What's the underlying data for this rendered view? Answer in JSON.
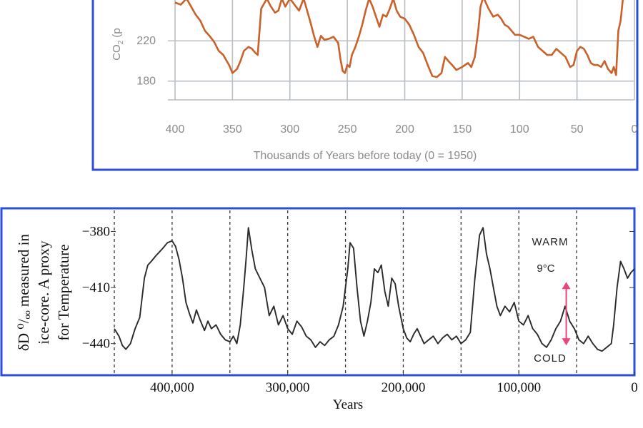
{
  "chart_data": [
    {
      "type": "line",
      "xlabel": "Thousands of Years before today (0 = 1950)",
      "ylabel_visible": "CO₂ (p",
      "ylabel_prefix": "CO",
      "ylabel_sub": "2",
      "ylabel_suffix": " (p",
      "x_ticks": [
        "400",
        "350",
        "300",
        "250",
        "200",
        "150",
        "100",
        "50",
        "0"
      ],
      "y_ticks": [
        "180",
        "220"
      ],
      "xlim": [
        400,
        0
      ],
      "ylim_visible": [
        167,
        262
      ],
      "line_color": "#c8612a",
      "frame_color": "#2c4fd6",
      "grid": true,
      "series": [
        {
          "x": [
            400,
            395,
            390,
            386,
            382,
            378,
            374,
            370,
            366,
            362,
            358,
            355,
            353,
            350,
            346,
            343,
            340,
            336,
            333,
            330,
            328,
            325,
            320,
            317,
            313,
            310,
            307,
            304,
            300,
            296,
            292,
            288,
            285,
            282,
            279,
            276,
            273,
            270,
            266,
            262,
            258,
            256,
            254,
            252,
            250,
            248,
            246,
            243,
            240,
            237,
            234,
            231,
            228,
            225,
            222,
            219,
            216,
            213,
            210,
            207,
            204,
            200,
            196,
            192,
            188,
            184,
            180,
            176,
            172,
            168,
            165,
            162,
            158,
            155,
            150,
            145,
            142,
            139,
            136,
            134,
            132,
            131,
            127,
            123,
            119,
            116,
            113,
            110,
            107,
            104,
            100,
            96,
            92,
            88,
            84,
            80,
            76,
            72,
            68,
            64,
            60,
            56,
            53,
            50,
            47,
            44,
            41,
            38,
            35,
            32,
            29,
            26,
            23,
            20,
            18,
            16,
            14,
            12,
            10,
            7
          ],
          "y": [
            258,
            256,
            262,
            254,
            246,
            240,
            230,
            225,
            219,
            210,
            206,
            200,
            196,
            188,
            192,
            200,
            210,
            214,
            212,
            208,
            206,
            252,
            262,
            255,
            248,
            250,
            262,
            254,
            262,
            256,
            250,
            262,
            250,
            238,
            225,
            214,
            225,
            221,
            222,
            224,
            218,
            202,
            190,
            188,
            196,
            194,
            206,
            214,
            224,
            236,
            250,
            262,
            254,
            244,
            234,
            246,
            244,
            252,
            262,
            250,
            244,
            242,
            236,
            226,
            214,
            208,
            196,
            185,
            184,
            188,
            204,
            200,
            195,
            191,
            194,
            198,
            194,
            204,
            230,
            254,
            262,
            262,
            252,
            244,
            246,
            242,
            236,
            234,
            230,
            226,
            226,
            224,
            222,
            224,
            214,
            210,
            206,
            206,
            212,
            208,
            204,
            194,
            196,
            210,
            214,
            212,
            206,
            198,
            196,
            196,
            194,
            200,
            192,
            188,
            194,
            186,
            230,
            240,
            262,
            262
          ]
        }
      ]
    },
    {
      "type": "line",
      "ylabel_line1": "δD ⁰/ₒₒ measured in",
      "ylabel_line2": "ice-core.  A proxy",
      "ylabel_line3": "for Temperature",
      "xlabel": "Years",
      "x_ticks": [
        "400,000",
        "300,000",
        "200,000",
        "100,000",
        "0"
      ],
      "y_ticks": [
        "−380",
        "−410",
        "−440"
      ],
      "xlim": [
        450000,
        0
      ],
      "ylim_visible": [
        -455,
        -368
      ],
      "line_color": "#2a2a2a",
      "frame_color": "#2c4fd6",
      "vlines_dashed": [
        450000,
        400000,
        350000,
        300000,
        250000,
        200000,
        150000,
        100000,
        50000
      ],
      "annotation": {
        "warm": "WARM",
        "cold": "COLD",
        "delta": "9°C",
        "arrow_color": "#e8457a",
        "arrow_x": 59000,
        "arrow_top": -407,
        "arrow_bottom": -441
      },
      "series": [
        {
          "x": [
            450000,
            446000,
            443000,
            440000,
            436000,
            432000,
            428000,
            424000,
            421000,
            418000,
            414000,
            411000,
            408000,
            404000,
            400000,
            397000,
            394000,
            391000,
            388000,
            385000,
            382000,
            379000,
            376000,
            372000,
            369000,
            366000,
            362000,
            358000,
            354000,
            350000,
            347000,
            344000,
            341000,
            338000,
            336000,
            334000,
            331000,
            328000,
            324000,
            320000,
            316000,
            312000,
            308000,
            304000,
            300000,
            296000,
            292000,
            288000,
            284000,
            280000,
            276000,
            272000,
            268000,
            264000,
            260000,
            256000,
            252000,
            248000,
            246000,
            243000,
            240000,
            237000,
            234000,
            231000,
            228000,
            225000,
            222000,
            219000,
            216000,
            213000,
            210000,
            207000,
            204000,
            200000,
            197000,
            194000,
            191000,
            188000,
            185000,
            182000,
            178000,
            174000,
            170000,
            166000,
            162000,
            158000,
            154000,
            150000,
            146000,
            142000,
            138000,
            134000,
            131000,
            128000,
            125000,
            122000,
            119000,
            116000,
            112000,
            108000,
            104000,
            100000,
            96000,
            92000,
            88000,
            84000,
            80000,
            76000,
            72000,
            68000,
            64000,
            60000,
            56000,
            52000,
            48000,
            44000,
            40000,
            36000,
            32000,
            28000,
            24000,
            20000,
            18000,
            15000,
            12000,
            9000,
            6000,
            3000,
            0
          ],
          "y": [
            -432,
            -436,
            -441,
            -443,
            -440,
            -432,
            -426,
            -405,
            -398,
            -396,
            -393,
            -391,
            -389,
            -386,
            -385,
            -388,
            -395,
            -405,
            -418,
            -424,
            -429,
            -422,
            -427,
            -433,
            -428,
            -432,
            -430,
            -435,
            -438,
            -439,
            -436,
            -440,
            -430,
            -410,
            -395,
            -378,
            -390,
            -400,
            -405,
            -410,
            -425,
            -420,
            -430,
            -425,
            -432,
            -435,
            -428,
            -431,
            -436,
            -438,
            -442,
            -439,
            -441,
            -438,
            -436,
            -430,
            -420,
            -400,
            -386,
            -389,
            -410,
            -428,
            -436,
            -428,
            -418,
            -400,
            -402,
            -398,
            -412,
            -420,
            -405,
            -408,
            -420,
            -432,
            -437,
            -439,
            -435,
            -432,
            -436,
            -440,
            -438,
            -436,
            -440,
            -437,
            -435,
            -438,
            -436,
            -440,
            -438,
            -434,
            -405,
            -382,
            -378,
            -392,
            -400,
            -410,
            -420,
            -425,
            -420,
            -423,
            -418,
            -428,
            -430,
            -425,
            -432,
            -435,
            -440,
            -442,
            -438,
            -432,
            -428,
            -420,
            -428,
            -432,
            -438,
            -440,
            -436,
            -440,
            -443,
            -444,
            -442,
            -440,
            -430,
            -410,
            -396,
            -400,
            -405,
            -402,
            -400
          ]
        }
      ]
    }
  ]
}
